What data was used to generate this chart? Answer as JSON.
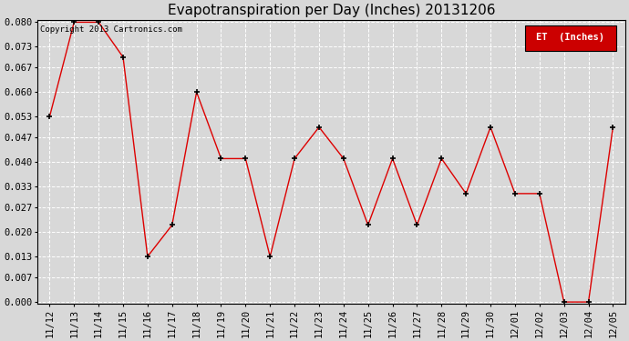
{
  "title": "Evapotranspiration per Day (Inches) 20131206",
  "copyright": "Copyright 2013 Cartronics.com",
  "legend_label": "ET  (Inches)",
  "legend_bg": "#cc0000",
  "dates": [
    "11/12",
    "11/13",
    "11/14",
    "11/15",
    "11/16",
    "11/17",
    "11/18",
    "11/19",
    "11/20",
    "11/21",
    "11/22",
    "11/23",
    "11/24",
    "11/25",
    "11/26",
    "11/27",
    "11/28",
    "11/29",
    "11/30",
    "12/01",
    "12/02",
    "12/03",
    "12/04",
    "12/05"
  ],
  "values": [
    0.053,
    0.08,
    0.08,
    0.07,
    0.013,
    0.022,
    0.06,
    0.041,
    0.041,
    0.013,
    0.041,
    0.05,
    0.041,
    0.022,
    0.041,
    0.022,
    0.041,
    0.031,
    0.05,
    0.031,
    0.031,
    0.0,
    0.0,
    0.05
  ],
  "line_color": "#dd0000",
  "marker": "+",
  "marker_color": "#000000",
  "ylim": [
    -0.0005,
    0.0807
  ],
  "yticks": [
    0.0,
    0.007,
    0.013,
    0.02,
    0.027,
    0.033,
    0.04,
    0.047,
    0.053,
    0.06,
    0.067,
    0.073,
    0.08
  ],
  "bg_color": "#d8d8d8",
  "plot_bg": "#d8d8d8",
  "grid_color": "#ffffff",
  "title_fontsize": 11,
  "axis_fontsize": 7.5,
  "copyright_fontsize": 6.5
}
